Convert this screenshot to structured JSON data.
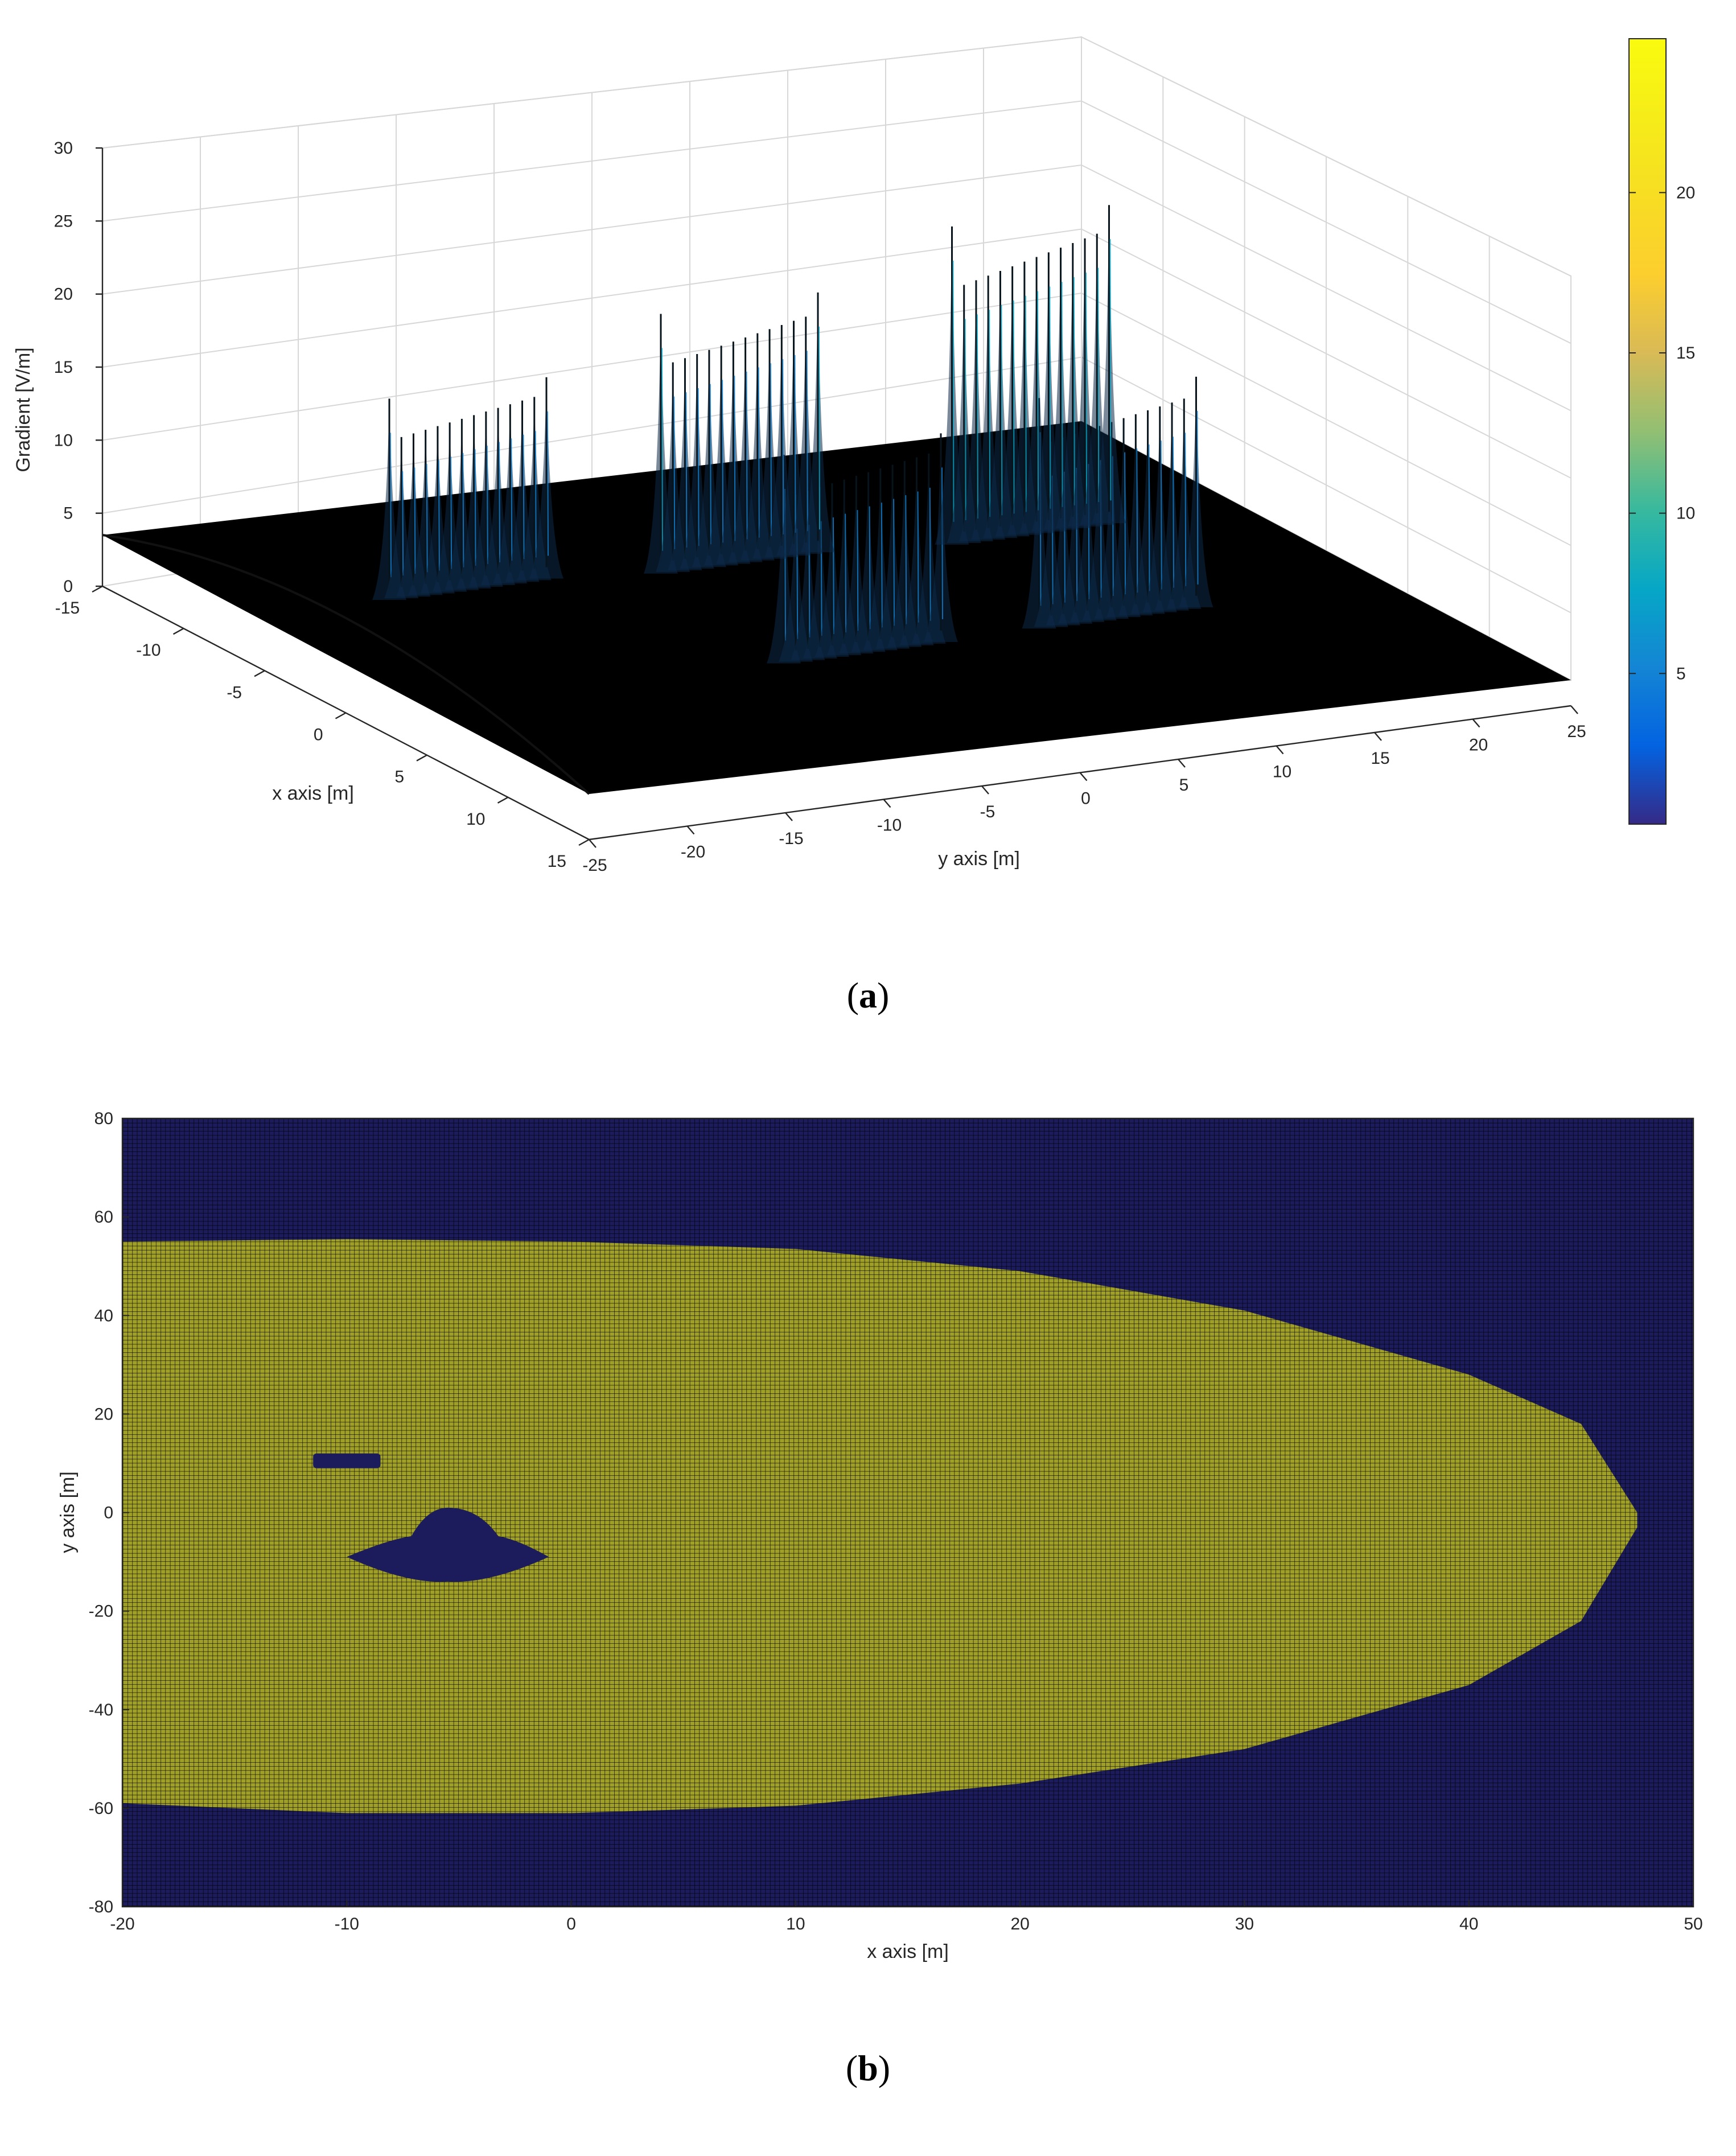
{
  "figure": {
    "caption_a": "a",
    "caption_b": "b"
  },
  "chart_data": [
    {
      "panel": "a",
      "type": "surface",
      "xlabel": "x axis [m]",
      "ylabel": "y axis [m]",
      "zlabel": "Gradient [V/m]",
      "x_ticks": [
        -15,
        -10,
        -5,
        0,
        5,
        10,
        15
      ],
      "y_ticks": [
        -25,
        -20,
        -15,
        -10,
        -5,
        0,
        5,
        10,
        15,
        20,
        25
      ],
      "z_ticks": [
        0,
        5,
        10,
        15,
        20,
        25,
        30
      ],
      "xlim": [
        -15,
        15
      ],
      "ylim": [
        -25,
        25
      ],
      "zlim": [
        0,
        30
      ],
      "grid": true,
      "colormap": "parula",
      "colorbar": {
        "ticks": [
          5,
          10,
          15,
          20
        ],
        "range": [
          0.3,
          24.8
        ],
        "location": "right"
      },
      "surface_base_level": 3,
      "peak_groups": [
        {
          "x_center": -7,
          "y_range": [
            -17,
            -9
          ],
          "peak_max": 16
        },
        {
          "x_center": 4,
          "y_range": [
            -6,
            2
          ],
          "peak_max": 16.5
        },
        {
          "x_center": -6,
          "y_range": [
            -4,
            4
          ],
          "peak_max": 20
        },
        {
          "x_center": 4,
          "y_range": [
            7,
            15
          ],
          "peak_max": 18
        },
        {
          "x_center": -5,
          "y_range": [
            10,
            18
          ],
          "peak_max": 24
        }
      ]
    },
    {
      "panel": "b",
      "type": "heatmap",
      "xlabel": "x axis [m]",
      "ylabel": "y axis [m]",
      "xlim": [
        -20,
        50
      ],
      "ylim": [
        -80,
        80
      ],
      "x_ticks": [
        -20,
        -10,
        0,
        10,
        20,
        30,
        40,
        50
      ],
      "y_ticks": [
        -80,
        -60,
        -40,
        -20,
        0,
        20,
        40,
        60,
        80
      ],
      "grid_resolution": 0.5,
      "colors": {
        "outside": "#1c1b5c",
        "inside": "#a0a028",
        "gridline": "#000000"
      },
      "region_boundary_x": [
        -20,
        -10,
        0,
        10,
        20,
        30,
        40,
        45,
        47.5
      ],
      "region_top_y": [
        55,
        55.5,
        55,
        53.5,
        49,
        41,
        28,
        18,
        0
      ],
      "region_bottom_y": [
        -59,
        -61,
        -61,
        -59.5,
        -55,
        -48,
        -35,
        -22,
        -3
      ],
      "region_tip": [
        47.5,
        -3
      ],
      "holes": [
        {
          "shape": "bar",
          "x": [
            -11.5,
            -8.5
          ],
          "y": [
            9,
            12
          ]
        },
        {
          "shape": "blob",
          "x": [
            -10,
            -1
          ],
          "y": [
            -14,
            1
          ]
        }
      ]
    }
  ]
}
